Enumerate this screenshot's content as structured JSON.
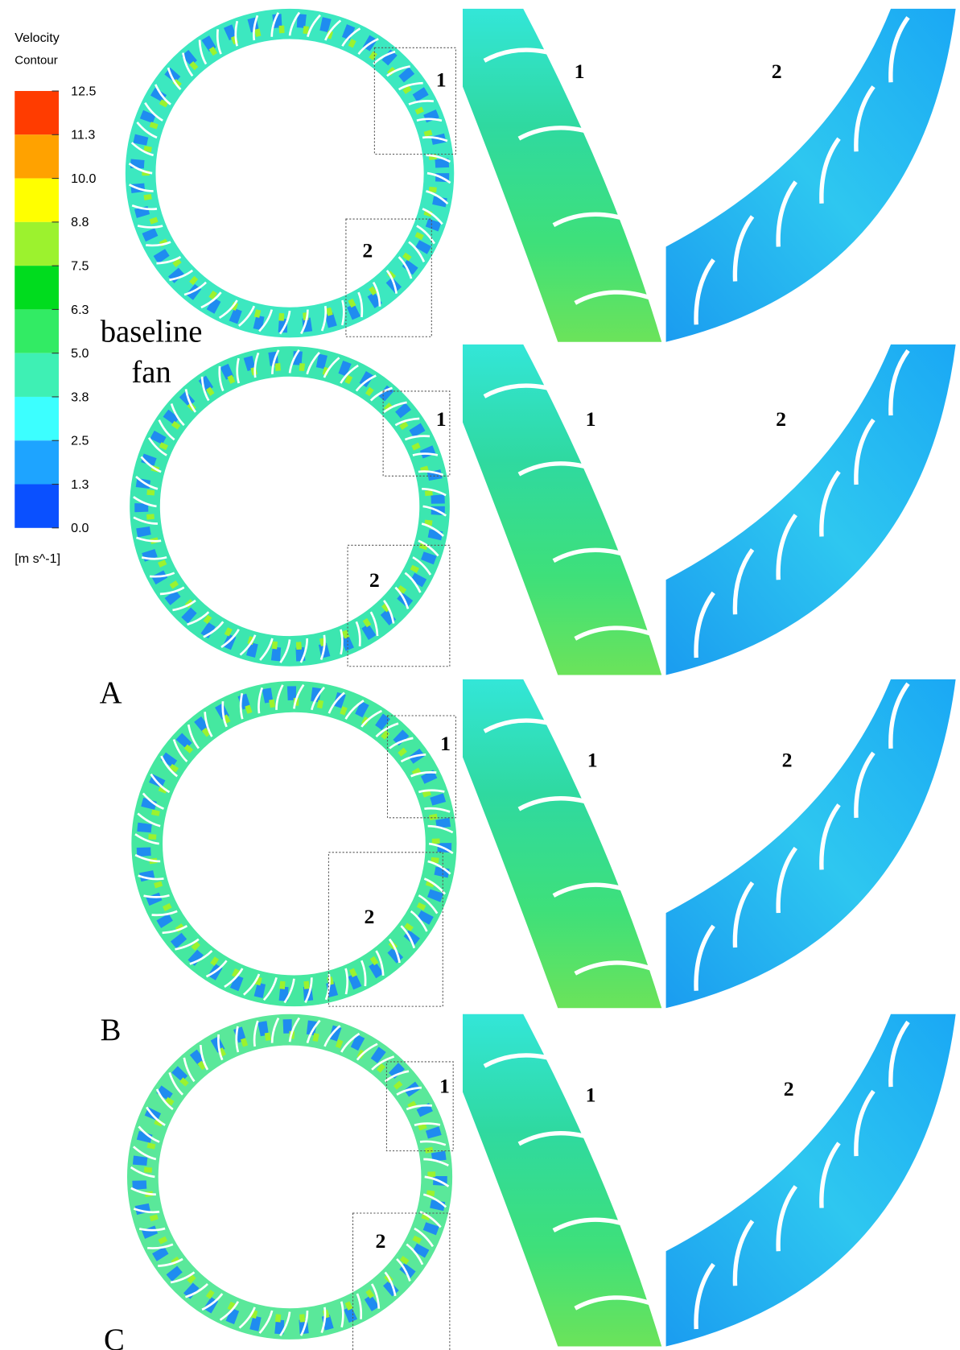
{
  "legend": {
    "title": "Velocity",
    "subtitle": "Contour",
    "ticks": [
      "12.5",
      "11.3",
      "10.0",
      "8.8",
      "7.5",
      "6.3",
      "5.0",
      "3.8",
      "2.5",
      "1.3",
      "0.0"
    ],
    "unit": "[m s^-1]"
  },
  "rows": [
    {
      "label": [
        "baseline",
        "fan"
      ],
      "box_labels": [
        "1",
        "2"
      ],
      "zoom_labels": [
        "1",
        "2"
      ]
    },
    {
      "label": [
        "A"
      ],
      "box_labels": [
        "1",
        "2"
      ],
      "zoom_labels": [
        "1",
        "2"
      ]
    },
    {
      "label": [
        "B"
      ],
      "box_labels": [
        "1",
        "2"
      ],
      "zoom_labels": [
        "1",
        "2"
      ]
    },
    {
      "label": [
        "C"
      ],
      "box_labels": [
        "1",
        "2"
      ],
      "zoom_labels": [
        "1",
        "2"
      ]
    }
  ]
}
